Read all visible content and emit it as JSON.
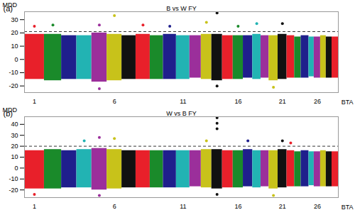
{
  "chart_data": [
    {
      "type": "scatter",
      "panel": "(a)",
      "title": "B vs W FY",
      "y_label": "MDD",
      "x_label": "BTA",
      "categories": [
        1,
        null,
        null,
        null,
        null,
        6,
        null,
        null,
        null,
        null,
        11,
        null,
        null,
        null,
        null,
        16,
        null,
        null,
        null,
        null,
        21,
        null,
        null,
        null,
        null,
        26,
        null,
        null,
        null
      ],
      "lengths": [
        158,
        137,
        121,
        120,
        121,
        119,
        112,
        113,
        105,
        104,
        107,
        91,
        84,
        85,
        85,
        81,
        75,
        66,
        64,
        72,
        71,
        61,
        52,
        62,
        42,
        51,
        45,
        46,
        51
      ],
      "colors": [
        "#e8202a",
        "#1a8a2a",
        "#1f1f8c",
        "#22b3b3",
        "#9b2f9b",
        "#c8c21a",
        "#111111",
        "#e8202a",
        "#1a8a2a",
        "#1f1f8c",
        "#22b3b3",
        "#9b2f9b",
        "#c8c21a",
        "#111111",
        "#e8202a",
        "#1a8a2a",
        "#1f1f8c",
        "#22b3b3",
        "#9b2f9b",
        "#c8c21a",
        "#111111",
        "#e8202a",
        "#1a8a2a",
        "#1f1f8c",
        "#22b3b3",
        "#9b2f9b",
        "#c8c21a",
        "#111111",
        "#e8202a"
      ],
      "low": [
        -15,
        -16,
        -15,
        -15,
        -17,
        -16,
        -15,
        -15,
        -15,
        -15,
        -15,
        -14,
        -15,
        -16,
        -15,
        -15,
        -14,
        -15,
        -14,
        -16,
        -15,
        -14,
        -14,
        -14,
        -13,
        -14,
        -14,
        -14,
        -14
      ],
      "high": [
        19,
        19,
        18,
        18,
        20,
        19,
        18,
        19,
        18,
        19,
        18,
        18,
        19,
        19,
        18,
        18,
        18,
        19,
        18,
        18,
        19,
        18,
        17,
        18,
        17,
        17,
        18,
        17,
        17
      ],
      "points": [
        {
          "chromosome": 1,
          "value": 25
        },
        {
          "chromosome": 2,
          "value": 26
        },
        {
          "chromosome": 5,
          "value": 26
        },
        {
          "chromosome": 6,
          "value": 33
        },
        {
          "chromosome": 8,
          "value": 26
        },
        {
          "chromosome": 10,
          "value": 25
        },
        {
          "chromosome": 13,
          "value": 28
        },
        {
          "chromosome": 14,
          "value": 35
        },
        {
          "chromosome": 16,
          "value": 25
        },
        {
          "chromosome": 18,
          "value": 27
        },
        {
          "chromosome": 21,
          "value": 27
        },
        {
          "chromosome": 5,
          "value": -22
        },
        {
          "chromosome": 14,
          "value": -20
        },
        {
          "chromosome": 20,
          "value": -21
        }
      ],
      "threshold": 21,
      "ylim": [
        -25,
        36
      ],
      "yticks": [
        -20,
        -10,
        0,
        10,
        20,
        30
      ]
    },
    {
      "type": "scatter",
      "panel": "(b)",
      "title": "W vs B FY",
      "y_label": "MDD",
      "x_label": "BTA",
      "categories": [
        1,
        null,
        null,
        null,
        null,
        6,
        null,
        null,
        null,
        null,
        11,
        null,
        null,
        null,
        null,
        16,
        null,
        null,
        null,
        null,
        21,
        null,
        null,
        null,
        null,
        26,
        null,
        null,
        null
      ],
      "lengths": [
        158,
        137,
        121,
        120,
        121,
        119,
        112,
        113,
        105,
        104,
        107,
        91,
        84,
        85,
        85,
        81,
        75,
        66,
        64,
        72,
        71,
        61,
        52,
        62,
        42,
        51,
        45,
        46,
        51
      ],
      "colors": [
        "#e8202a",
        "#1a8a2a",
        "#1f1f8c",
        "#22b3b3",
        "#9b2f9b",
        "#c8c21a",
        "#111111",
        "#e8202a",
        "#1a8a2a",
        "#1f1f8c",
        "#22b3b3",
        "#9b2f9b",
        "#c8c21a",
        "#111111",
        "#e8202a",
        "#1a8a2a",
        "#1f1f8c",
        "#22b3b3",
        "#9b2f9b",
        "#c8c21a",
        "#111111",
        "#e8202a",
        "#1a8a2a",
        "#1f1f8c",
        "#22b3b3",
        "#9b2f9b",
        "#c8c21a",
        "#111111",
        "#e8202a"
      ],
      "low": [
        -19,
        -19,
        -18,
        -18,
        -20,
        -19,
        -18,
        -18,
        -18,
        -18,
        -18,
        -17,
        -18,
        -19,
        -18,
        -18,
        -17,
        -18,
        -17,
        -19,
        -18,
        -17,
        -17,
        -17,
        -16,
        -17,
        -17,
        -17,
        -17
      ],
      "high": [
        16,
        17,
        16,
        17,
        18,
        17,
        16,
        16,
        16,
        16,
        16,
        16,
        17,
        17,
        16,
        16,
        17,
        16,
        16,
        16,
        17,
        16,
        15,
        16,
        15,
        15,
        16,
        15,
        15
      ],
      "points": [
        {
          "chromosome": 4,
          "value": 25
        },
        {
          "chromosome": 5,
          "value": 28
        },
        {
          "chromosome": 6,
          "value": 27
        },
        {
          "chromosome": 13,
          "value": 25
        },
        {
          "chromosome": 14,
          "value": 46
        },
        {
          "chromosome": 14,
          "value": 41
        },
        {
          "chromosome": 14,
          "value": 36
        },
        {
          "chromosome": 17,
          "value": 25
        },
        {
          "chromosome": 21,
          "value": 25
        },
        {
          "chromosome": 22,
          "value": 23
        },
        {
          "chromosome": 1,
          "value": -24
        },
        {
          "chromosome": 5,
          "value": -25
        },
        {
          "chromosome": 14,
          "value": -24
        },
        {
          "chromosome": 20,
          "value": -25
        }
      ],
      "threshold": 20,
      "ylim": [
        -27,
        47
      ],
      "yticks": [
        -20,
        -10,
        0,
        10,
        20,
        30,
        40
      ]
    }
  ]
}
